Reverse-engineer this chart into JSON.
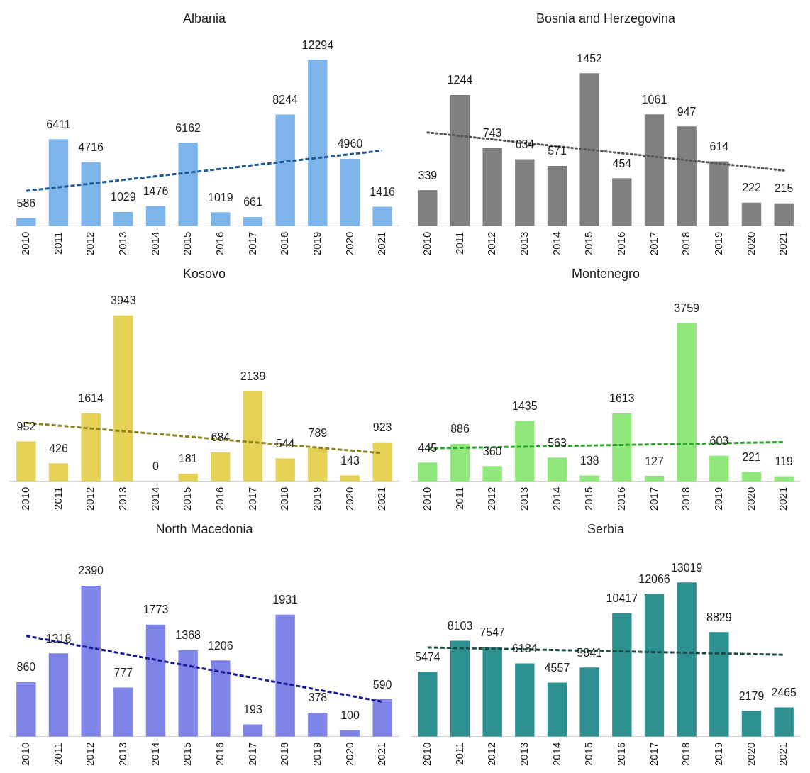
{
  "chart_data": [
    {
      "type": "bar",
      "title": "Albania",
      "categories": [
        "2010",
        "2011",
        "2012",
        "2013",
        "2014",
        "2015",
        "2016",
        "2017",
        "2018",
        "2019",
        "2020",
        "2021"
      ],
      "series": [
        {
          "color": "#7db5ea",
          "values": [
            586,
            6411,
            4716,
            1029,
            1476,
            6162,
            1019,
            661,
            8244,
            12294,
            4960,
            1416
          ],
          "value_labels": [
            "586",
            "6411",
            "4716",
            "1029",
            "1476",
            "6162",
            "1019",
            "661",
            "8244",
            "12294",
            "4960",
            "1416"
          ]
        },
        {
          "type": "line",
          "values": [
            2590,
            null,
            null,
            null,
            null,
            null,
            null,
            null,
            null,
            null,
            null,
            5572
          ],
          "color": "#205a96",
          "line_style": "dashed"
        }
      ]
    },
    {
      "type": "bar",
      "title": "Bosnia and Herzegovina",
      "categories": [
        "2010",
        "2011",
        "2012",
        "2013",
        "2014",
        "2015",
        "2016",
        "2017",
        "2018",
        "2019",
        "2020",
        "2021"
      ],
      "series": [
        {
          "color": "#808080",
          "values": [
            339,
            1244,
            743,
            634,
            571,
            1452,
            454,
            1061,
            947,
            614,
            222,
            215
          ],
          "value_labels": [
            "339",
            "1244",
            "743",
            "634",
            "571",
            "1452",
            "454",
            "1061",
            "947",
            "614",
            "222",
            "215"
          ]
        },
        {
          "type": "line",
          "values": [
            889,
            null,
            null,
            null,
            null,
            null,
            null,
            null,
            null,
            null,
            null,
            527
          ],
          "color": "#595959",
          "line_style": "dotted"
        }
      ]
    },
    {
      "type": "bar",
      "title": "Kosovo",
      "categories": [
        "2010",
        "2011",
        "2012",
        "2013",
        "2014",
        "2015",
        "2016",
        "2017",
        "2018",
        "2019",
        "2020",
        "2021"
      ],
      "series": [
        {
          "color": "#e5d155",
          "values": [
            952,
            426,
            1614,
            3943,
            0,
            181,
            684,
            2139,
            544,
            789,
            143,
            923
          ],
          "value_labels": [
            "952",
            "426",
            "1614",
            "3943",
            "0",
            "181",
            "684",
            "2139",
            "544",
            "789",
            "143",
            "923"
          ]
        },
        {
          "type": "line",
          "values": [
            1388,
            null,
            null,
            null,
            null,
            null,
            null,
            null,
            null,
            null,
            null,
            668
          ],
          "color": "#8c8420",
          "line_style": "dashed"
        }
      ]
    },
    {
      "type": "bar",
      "title": "Montenegro",
      "categories": [
        "2010",
        "2011",
        "2012",
        "2013",
        "2014",
        "2015",
        "2016",
        "2017",
        "2018",
        "2019",
        "2020",
        "2021"
      ],
      "series": [
        {
          "color": "#90e87a",
          "values": [
            445,
            886,
            360,
            1435,
            563,
            138,
            1613,
            127,
            3759,
            603,
            221,
            119
          ],
          "value_labels": [
            "445",
            "886",
            "360",
            "1435",
            "563",
            "138",
            "1613",
            "127",
            "3759",
            "603",
            "221",
            "119"
          ]
        },
        {
          "type": "line",
          "values": [
            781,
            null,
            null,
            null,
            null,
            null,
            null,
            null,
            null,
            null,
            null,
            931
          ],
          "color": "#2aa52a",
          "line_style": "dashed"
        }
      ]
    },
    {
      "type": "bar",
      "title": "North Macedonia",
      "categories": [
        "2010",
        "2011",
        "2012",
        "2013",
        "2014",
        "2015",
        "2016",
        "2017",
        "2018",
        "2019",
        "2020",
        "2021"
      ],
      "series": [
        {
          "color": "#7f84e8",
          "values": [
            860,
            1318,
            2390,
            777,
            1773,
            1368,
            1206,
            193,
            1931,
            378,
            100,
            590
          ],
          "value_labels": [
            "860",
            "1318",
            "2390",
            "777",
            "1773",
            "1368",
            "1206",
            "193",
            "1931",
            "378",
            "100",
            "590"
          ]
        },
        {
          "type": "line",
          "values": [
            1596,
            null,
            null,
            null,
            null,
            null,
            null,
            null,
            null,
            null,
            null,
            552
          ],
          "color": "#1c1c96",
          "line_style": "dashed"
        }
      ]
    },
    {
      "type": "bar",
      "title": "Serbia",
      "categories": [
        "2010",
        "2011",
        "2012",
        "2013",
        "2014",
        "2015",
        "2016",
        "2017",
        "2018",
        "2019",
        "2020",
        "2021"
      ],
      "series": [
        {
          "color": "#2e9090",
          "values": [
            5474,
            8103,
            7547,
            6184,
            4557,
            5841,
            10417,
            12066,
            13019,
            8829,
            2179,
            2465
          ],
          "value_labels": [
            "5474",
            "8103",
            "7547",
            "6184",
            "4557",
            "5841",
            "10417",
            "12066",
            "13019",
            "8829",
            "2179",
            "2465"
          ]
        },
        {
          "type": "line",
          "values": [
            7534,
            null,
            null,
            null,
            null,
            null,
            null,
            null,
            null,
            null,
            null,
            6912
          ],
          "color": "#1e4e48",
          "line_style": "dashed"
        }
      ]
    }
  ]
}
